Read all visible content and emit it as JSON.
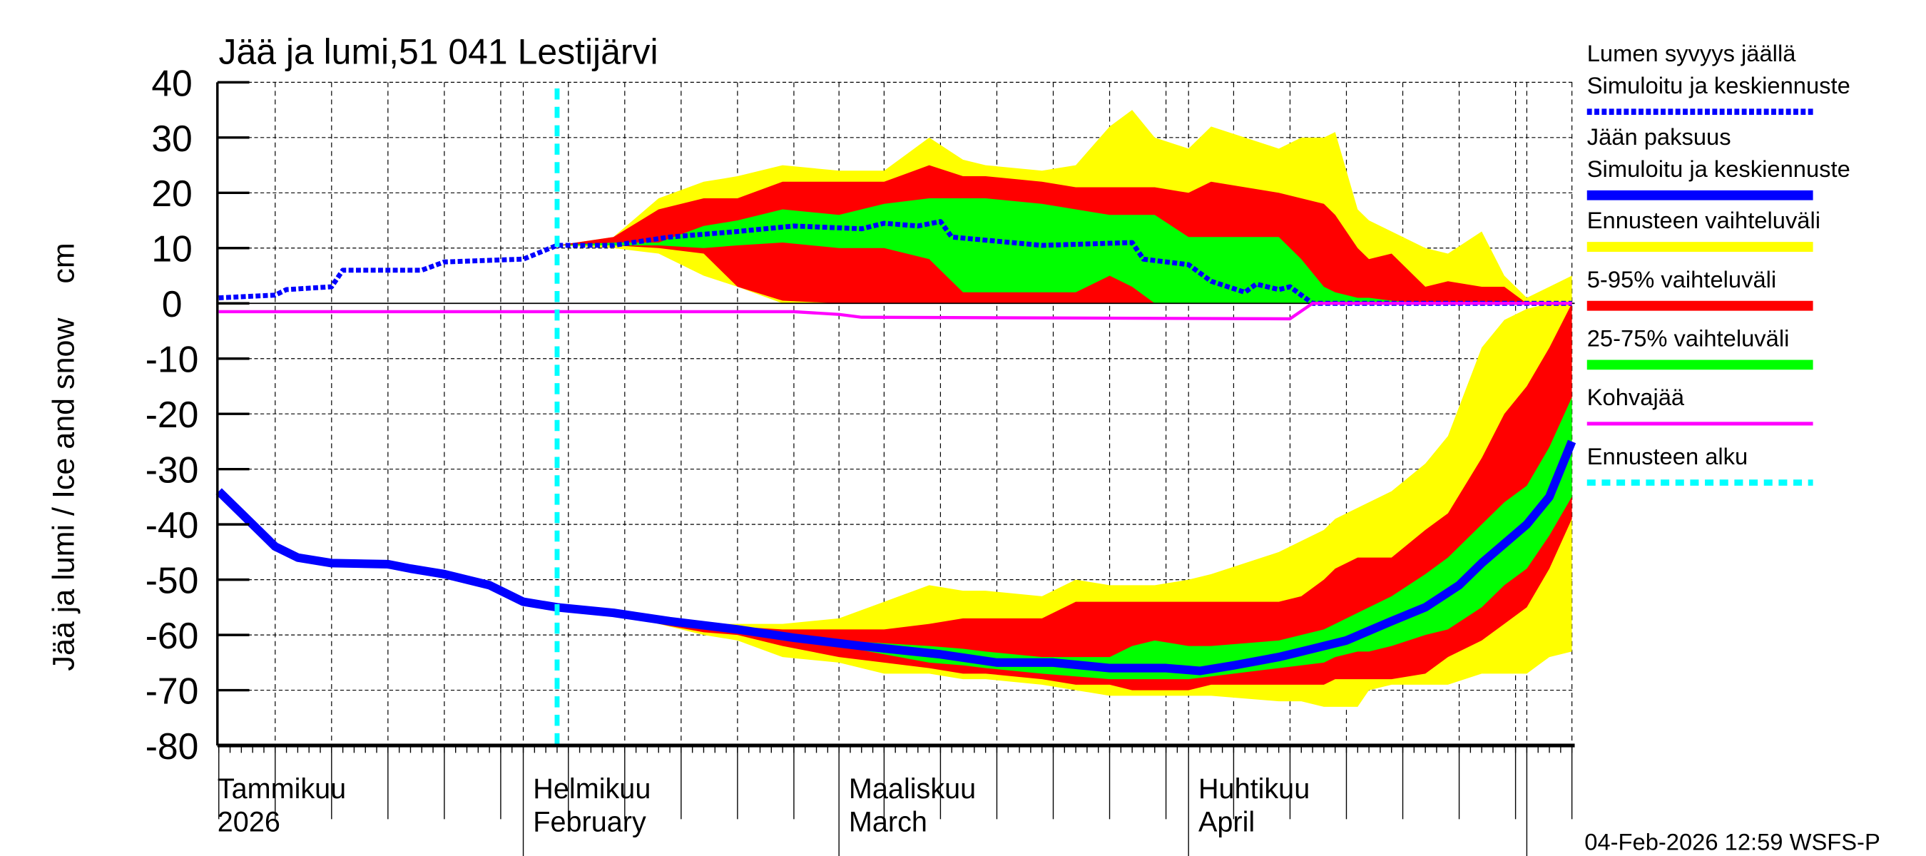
{
  "chart_data": {
    "type": "area",
    "title": "Jää ja lumi,51 041 Lestijärvi",
    "ylabel": "Jää ja lumi / Ice and snow    cm",
    "ylim": [
      -80,
      40
    ],
    "yticks": [
      40,
      30,
      20,
      10,
      0,
      -10,
      -20,
      -30,
      -40,
      -50,
      -60,
      -70,
      -80
    ],
    "xlim": [
      "2026-01-05",
      "2026-05-05"
    ],
    "grid": true,
    "legend_placement": "right",
    "month_labels": [
      {
        "date": "2026-01-05",
        "fi": "Tammikuu",
        "en": "2026"
      },
      {
        "date": "2026-02-01",
        "fi": "Helmikuu",
        "en": "February"
      },
      {
        "date": "2026-03-01",
        "fi": "Maaliskuu",
        "en": "March"
      },
      {
        "date": "2026-04-01",
        "fi": "Huhtikuu",
        "en": "April"
      }
    ],
    "forecast_start": "2026-02-04",
    "colors": {
      "yellow": "#ffff00",
      "red": "#ff0000",
      "green": "#00ff00",
      "blue": "#0000ff",
      "magenta": "#ff00ff",
      "cyan": "#00ffff"
    },
    "band_dates": [
      "2026-02-04",
      "2026-02-09",
      "2026-02-13",
      "2026-02-17",
      "2026-02-20",
      "2026-02-24",
      "2026-03-01",
      "2026-03-05",
      "2026-03-09",
      "2026-03-12",
      "2026-03-14",
      "2026-03-19",
      "2026-03-22",
      "2026-03-25",
      "2026-03-27",
      "2026-03-29",
      "2026-04-01",
      "2026-04-03",
      "2026-04-09",
      "2026-04-11",
      "2026-04-13",
      "2026-04-14",
      "2026-04-16",
      "2026-04-17",
      "2026-04-19",
      "2026-04-22",
      "2026-04-24",
      "2026-04-27",
      "2026-04-29",
      "2026-05-01",
      "2026-05-03",
      "2026-05-05"
    ],
    "bands": [
      {
        "group": "snow",
        "kind": "range",
        "color": "#ffff00",
        "upper": [
          10.5,
          12,
          19,
          22,
          23,
          25,
          24,
          24,
          30,
          26,
          25,
          24,
          25,
          32,
          35,
          30,
          28,
          32,
          28,
          30,
          30,
          31,
          17,
          15,
          13,
          10,
          9,
          13,
          5,
          1,
          3,
          5
        ],
        "lower": [
          10.5,
          10,
          9,
          5,
          3,
          0,
          0,
          0,
          0,
          0,
          0,
          0,
          0,
          0,
          0,
          0,
          0,
          0,
          0,
          0,
          0,
          0,
          0,
          0,
          0,
          0,
          0,
          0,
          0,
          0,
          0,
          0
        ]
      },
      {
        "group": "snow",
        "kind": "p5_95",
        "color": "#ff0000",
        "upper": [
          10.5,
          12,
          17,
          19,
          19,
          22,
          22,
          22,
          25,
          23,
          23,
          22,
          21,
          21,
          21,
          21,
          20,
          22,
          20,
          19,
          18,
          16,
          10,
          8,
          9,
          3,
          4,
          3,
          3,
          0,
          0,
          0
        ],
        "lower": [
          10.5,
          10.5,
          10,
          9,
          3,
          0.5,
          0,
          0,
          0,
          0,
          0,
          0,
          0,
          0,
          0,
          0,
          0,
          0,
          0,
          0,
          0,
          0,
          0,
          0,
          0,
          0,
          0,
          0,
          0,
          0,
          0,
          0
        ]
      },
      {
        "group": "snow",
        "kind": "p25_75",
        "color": "#00ff00",
        "upper": [
          10.5,
          11,
          11,
          14,
          15,
          17,
          16,
          18,
          19,
          19,
          19,
          18,
          17,
          16,
          16,
          16,
          12,
          12,
          12,
          8,
          3,
          2,
          1,
          1,
          0.5,
          0,
          0,
          0,
          0,
          0,
          0,
          0
        ],
        "lower": [
          10.5,
          10.5,
          10.5,
          10,
          10.5,
          11,
          10,
          10,
          8,
          2,
          2,
          2,
          2,
          5,
          3,
          0,
          0,
          0,
          0,
          0,
          0,
          0,
          0,
          0,
          0,
          0,
          0,
          0,
          0,
          0,
          0,
          0
        ]
      },
      {
        "group": "ice",
        "kind": "range",
        "color": "#ffff00",
        "upper": [
          -55,
          -56,
          -57,
          -58,
          -58,
          -58,
          -57,
          -54,
          -51,
          -52,
          -52,
          -53,
          -50,
          -51,
          -51,
          -51,
          -50,
          -49,
          -45,
          -43,
          -41,
          -39,
          -37,
          -36,
          -34,
          -29,
          -24,
          -8,
          -3,
          -1,
          0,
          0
        ],
        "lower": [
          -55,
          -56,
          -58,
          -60,
          -61,
          -64,
          -65,
          -67,
          -67,
          -68,
          -68,
          -69,
          -70,
          -71,
          -71,
          -71,
          -71,
          -71,
          -72,
          -72,
          -73,
          -73,
          -73,
          -70,
          -69,
          -69,
          -69,
          -67,
          -67,
          -67,
          -64,
          -63
        ]
      },
      {
        "group": "ice",
        "kind": "p5_95",
        "color": "#ff0000",
        "upper": [
          -55,
          -56,
          -57,
          -58,
          -58.5,
          -59,
          -59,
          -59,
          -58,
          -57,
          -57,
          -57,
          -54,
          -54,
          -54,
          -54,
          -54,
          -54,
          -54,
          -53,
          -50,
          -48,
          -46,
          -46,
          -46,
          -41,
          -38,
          -28,
          -20,
          -15,
          -8,
          0
        ],
        "lower": [
          -55,
          -56,
          -58,
          -59.5,
          -60,
          -62,
          -64,
          -65,
          -66,
          -67,
          -67,
          -68,
          -69,
          -69,
          -70,
          -70,
          -70,
          -69,
          -69,
          -69,
          -69,
          -68,
          -68,
          -68,
          -68,
          -67,
          -64,
          -61,
          -58,
          -55,
          -48,
          -39
        ]
      },
      {
        "group": "ice",
        "kind": "p25_75",
        "color": "#00ff00",
        "upper": [
          -55,
          -56,
          -57.5,
          -58.5,
          -59,
          -60,
          -61,
          -61.5,
          -62,
          -62.5,
          -63,
          -64,
          -64,
          -64,
          -62,
          -61,
          -62,
          -62,
          -61,
          -60,
          -59,
          -58,
          -56,
          -55,
          -53,
          -49,
          -46,
          -40,
          -36,
          -33,
          -26,
          -17
        ],
        "lower": [
          -55,
          -56,
          -58,
          -59,
          -59.5,
          -61,
          -62,
          -63.5,
          -65,
          -65.5,
          -66,
          -67,
          -67.5,
          -68,
          -68,
          -68,
          -68,
          -67.5,
          -66,
          -65.5,
          -65,
          -64,
          -63,
          -63,
          -62,
          -60,
          -59,
          -55,
          -51,
          -48,
          -42,
          -35
        ]
      }
    ],
    "series": [
      {
        "name": "Lumen syvyys jäällä",
        "style": "dotted",
        "color": "#0000ff",
        "x": [
          "2026-01-05",
          "2026-01-10",
          "2026-01-11",
          "2026-01-15",
          "2026-01-16",
          "2026-01-23",
          "2026-01-25",
          "2026-02-01",
          "2026-02-04",
          "2026-02-09",
          "2026-02-14",
          "2026-02-20",
          "2026-02-25",
          "2026-03-03",
          "2026-03-05",
          "2026-03-08",
          "2026-03-10",
          "2026-03-11",
          "2026-03-19",
          "2026-03-27",
          "2026-03-28",
          "2026-04-01",
          "2026-04-03",
          "2026-04-06",
          "2026-04-07",
          "2026-04-09",
          "2026-04-10",
          "2026-04-12",
          "2026-05-05"
        ],
        "y": [
          1,
          1.5,
          2.5,
          3,
          6,
          6,
          7.5,
          8,
          10.5,
          10.5,
          12,
          13,
          14,
          13.5,
          14.5,
          14,
          14.8,
          12,
          10.5,
          11,
          8,
          7,
          4,
          2,
          3.5,
          2.5,
          3,
          0,
          0
        ]
      },
      {
        "name": "Jään paksuus",
        "style": "solid",
        "color": "#0000ff",
        "x": [
          "2026-01-05",
          "2026-01-07",
          "2026-01-10",
          "2026-01-12",
          "2026-01-15",
          "2026-01-20",
          "2026-01-22",
          "2026-01-25",
          "2026-01-29",
          "2026-02-01",
          "2026-02-04",
          "2026-02-09",
          "2026-02-14",
          "2026-02-20",
          "2026-02-25",
          "2026-03-03",
          "2026-03-10",
          "2026-03-15",
          "2026-03-20",
          "2026-03-25",
          "2026-03-30",
          "2026-04-02",
          "2026-04-05",
          "2026-04-09",
          "2026-04-12",
          "2026-04-15",
          "2026-04-19",
          "2026-04-22",
          "2026-04-25",
          "2026-04-27",
          "2026-05-01",
          "2026-05-03",
          "2026-05-05"
        ],
        "y": [
          -34,
          -38,
          -44,
          -46,
          -47,
          -47.2,
          -48,
          -49,
          -51,
          -54,
          -55,
          -56,
          -57.5,
          -59,
          -60.5,
          -62,
          -63.5,
          -65,
          -65,
          -66,
          -66,
          -66.5,
          -65.5,
          -64,
          -62.5,
          -61,
          -57.5,
          -55,
          -51,
          -47,
          -40,
          -35,
          -25
        ]
      },
      {
        "name": "Kohvajää",
        "style": "solid",
        "color": "#ff00ff",
        "x": [
          "2026-01-05",
          "2026-02-25",
          "2026-03-01",
          "2026-03-03",
          "2026-04-10",
          "2026-04-12",
          "2026-05-05"
        ],
        "y": [
          -1.5,
          -1.5,
          -2,
          -2.5,
          -2.8,
          0,
          0
        ]
      }
    ],
    "legend": [
      {
        "label": "Lumen syvyys jäällä",
        "label2": "Simuloitu ja keskiennuste",
        "color": "#0000ff",
        "style": "dotted"
      },
      {
        "label": "Jään paksuus",
        "label2": "Simuloitu ja keskiennuste",
        "color": "#0000ff",
        "style": "solid"
      },
      {
        "label": "Ennusteen vaihteluväli",
        "color": "#ffff00",
        "style": "bar"
      },
      {
        "label": "5-95% vaihteluväli",
        "color": "#ff0000",
        "style": "bar"
      },
      {
        "label": "25-75% vaihteluväli",
        "color": "#00ff00",
        "style": "bar"
      },
      {
        "label": "Kohvajää",
        "color": "#ff00ff",
        "style": "thin"
      },
      {
        "label": "Ennusteen alku",
        "color": "#00ffff",
        "style": "dashed"
      }
    ],
    "footer": "04-Feb-2026 12:59 WSFS-P"
  }
}
